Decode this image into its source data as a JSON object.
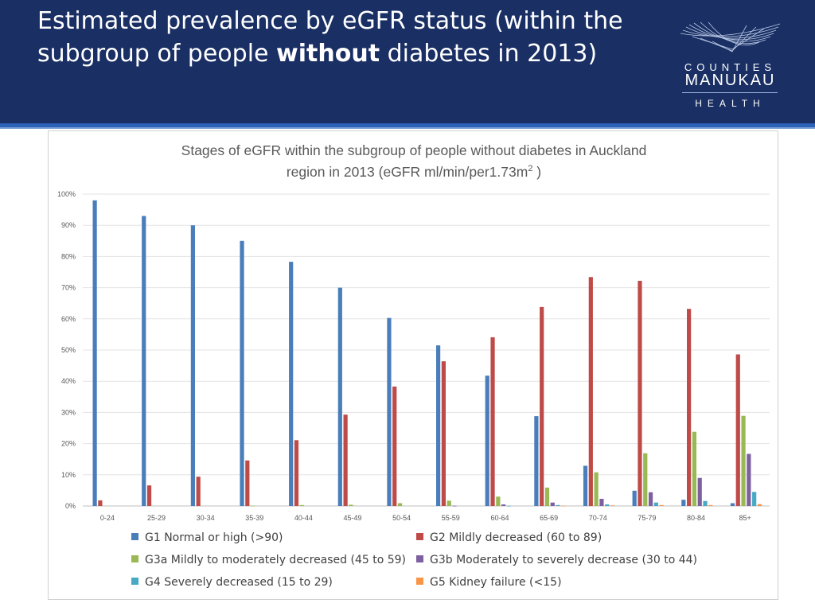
{
  "slide": {
    "title_part1": "Estimated prevalence by eGFR status (within the subgroup of people ",
    "title_bold": "without",
    "title_part2": " diabetes in 2013)"
  },
  "logo": {
    "line1": "COUNTIES",
    "line2": "MANUKAU",
    "line3": "HEALTH"
  },
  "chart_data": {
    "type": "bar",
    "title_line1": "Stages of eGFR within the subgroup of people without diabetes in Auckland",
    "title_line2": "region in 2013  (eGFR ml/min/per1.73m",
    "title_sup": "2",
    "title_end": " )",
    "categories": [
      "0-24",
      "25-29",
      "30-34",
      "35-39",
      "40-44",
      "45-49",
      "50-54",
      "55-59",
      "60-64",
      "65-69",
      "70-74",
      "75-79",
      "80-84",
      "85+"
    ],
    "ylim": [
      0,
      100
    ],
    "yticks": [
      "0%",
      "10%",
      "20%",
      "30%",
      "40%",
      "50%",
      "60%",
      "70%",
      "80%",
      "90%",
      "100%"
    ],
    "grid": true,
    "legend_position": "bottom",
    "series": [
      {
        "name": "G1 Normal or high  (>90)",
        "color": "#4a7ebb",
        "values": [
          98,
          93,
          90,
          85,
          78.3,
          70,
          60.3,
          51.5,
          41.8,
          28.8,
          12.9,
          4.9,
          2.0,
          0.9
        ]
      },
      {
        "name": "G2 Mildly decreased (60 to 89)",
        "color": "#be4b48",
        "values": [
          1.8,
          6.6,
          9.4,
          14.6,
          21.1,
          29.3,
          38.3,
          46.4,
          54.1,
          63.8,
          73.4,
          72.2,
          63.2,
          48.6
        ]
      },
      {
        "name": "G3a Mildly to moderately decreased (45 to 59)",
        "color": "#98b954",
        "values": [
          0,
          0,
          0,
          0.1,
          0.3,
          0.4,
          0.9,
          1.7,
          3.0,
          5.9,
          10.8,
          16.9,
          23.8,
          28.9
        ]
      },
      {
        "name": "G3b Moderately to severely decrease (30 to 44)",
        "color": "#7d60a0",
        "values": [
          0,
          0,
          0,
          0,
          0,
          0,
          0,
          0.1,
          0.5,
          1.1,
          2.3,
          4.4,
          9.0,
          16.7
        ]
      },
      {
        "name": "G4 Severely decreased (15 to 29)",
        "color": "#46aac5",
        "values": [
          0,
          0,
          0,
          0,
          0,
          0,
          0,
          0,
          0.1,
          0.3,
          0.5,
          1.1,
          1.6,
          4.5
        ]
      },
      {
        "name": "G5 Kidney failure (<15)",
        "color": "#f79646",
        "values": [
          0,
          0,
          0,
          0,
          0,
          0,
          0,
          0,
          0,
          0.1,
          0.2,
          0.3,
          0.3,
          0.6
        ]
      }
    ]
  }
}
